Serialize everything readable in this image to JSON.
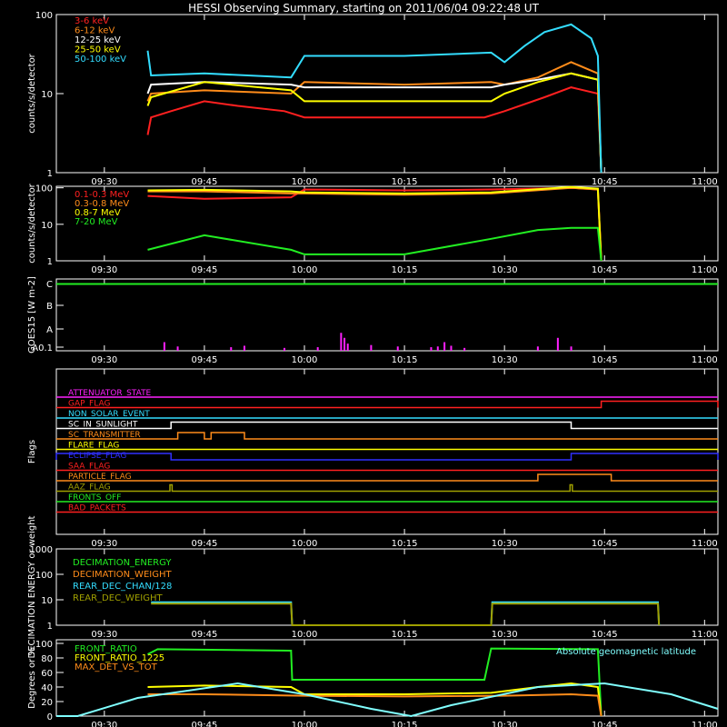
{
  "title": "HESSI Observing Summary, starting on 2011/06/04 09:22:48 UT",
  "time_ticks": [
    "09:30",
    "09:45",
    "10:00",
    "10:15",
    "10:30",
    "10:45",
    "11:00"
  ],
  "colors": {
    "red": "#ff2020",
    "orange": "#ff8c1a",
    "yellow": "#ffff00",
    "green": "#22ee22",
    "cyan": "#33ddff",
    "magenta": "#ff20ff",
    "blue": "#3030ff",
    "olive": "#a0a000",
    "white": "#ffffff",
    "sky": "#80ffff"
  },
  "chart_data": [
    {
      "type": "line",
      "ylabel": "counts/s/detector",
      "yscale": "log",
      "ylim": [
        1,
        100
      ],
      "ytick_labels": [
        "1",
        "10",
        "100"
      ],
      "xlim": [
        "09:22:48",
        "11:02"
      ],
      "legend": "top-left",
      "series": [
        {
          "name": "3-6 keV",
          "color": "red",
          "points": [
            [
              "09:36:30",
              3
            ],
            [
              "09:37",
              5
            ],
            [
              "09:40",
              6
            ],
            [
              "09:45",
              8
            ],
            [
              "09:50",
              7
            ],
            [
              "09:57",
              6
            ],
            [
              "10:00",
              5
            ],
            [
              "10:15",
              5
            ],
            [
              "10:27",
              5
            ],
            [
              "10:30",
              6
            ],
            [
              "10:36",
              9
            ],
            [
              "10:40",
              12
            ],
            [
              "10:44",
              10
            ],
            [
              "10:44:30",
              1
            ]
          ]
        },
        {
          "name": "6-12 keV",
          "color": "orange",
          "points": [
            [
              "09:36:30",
              8
            ],
            [
              "09:37",
              10
            ],
            [
              "09:45",
              11
            ],
            [
              "09:58",
              10
            ],
            [
              "10:00",
              14
            ],
            [
              "10:15",
              13
            ],
            [
              "10:28",
              14
            ],
            [
              "10:30",
              13
            ],
            [
              "10:35",
              16
            ],
            [
              "10:40",
              25
            ],
            [
              "10:44",
              18
            ],
            [
              "10:44:30",
              1
            ]
          ]
        },
        {
          "name": "12-25 keV",
          "color": "white",
          "points": [
            [
              "09:36:30",
              10
            ],
            [
              "09:37",
              13
            ],
            [
              "09:45",
              14
            ],
            [
              "09:58",
              13
            ],
            [
              "10:00",
              12
            ],
            [
              "10:15",
              12
            ],
            [
              "10:28",
              12
            ],
            [
              "10:30",
              13
            ],
            [
              "10:35",
              15
            ],
            [
              "10:40",
              18
            ],
            [
              "10:44",
              15
            ],
            [
              "10:44:30",
              1
            ]
          ]
        },
        {
          "name": "25-50 keV",
          "color": "yellow",
          "points": [
            [
              "09:36:30",
              7
            ],
            [
              "09:37",
              9
            ],
            [
              "09:45",
              14
            ],
            [
              "09:58",
              11
            ],
            [
              "10:00",
              8
            ],
            [
              "10:15",
              8
            ],
            [
              "10:28",
              8
            ],
            [
              "10:30",
              10
            ],
            [
              "10:35",
              14
            ],
            [
              "10:40",
              18
            ],
            [
              "10:44",
              15
            ],
            [
              "10:44:30",
              1
            ]
          ]
        },
        {
          "name": "50-100 keV",
          "color": "cyan",
          "points": [
            [
              "09:36:30",
              35
            ],
            [
              "09:37",
              17
            ],
            [
              "09:45",
              18
            ],
            [
              "09:58",
              16
            ],
            [
              "10:00",
              30
            ],
            [
              "10:15",
              30
            ],
            [
              "10:28",
              33
            ],
            [
              "10:30",
              25
            ],
            [
              "10:33",
              40
            ],
            [
              "10:36",
              60
            ],
            [
              "10:40",
              75
            ],
            [
              "10:43",
              50
            ],
            [
              "10:44",
              30
            ],
            [
              "10:44:30",
              1
            ]
          ]
        }
      ]
    },
    {
      "type": "line",
      "ylabel": "counts/s/detector",
      "yscale": "log",
      "ylim": [
        1,
        110
      ],
      "ytick_labels": [
        "1",
        "10",
        "100"
      ],
      "legend": "top-left",
      "series": [
        {
          "name": "0.1-0.3 MeV",
          "color": "red",
          "points": [
            [
              "09:36:30",
              60
            ],
            [
              "09:45",
              50
            ],
            [
              "09:58",
              55
            ],
            [
              "10:00",
              90
            ],
            [
              "10:15",
              85
            ],
            [
              "10:28",
              90
            ],
            [
              "10:40",
              100
            ],
            [
              "10:44",
              90
            ],
            [
              "10:44:30",
              1
            ]
          ]
        },
        {
          "name": "0.3-0.8 MeV",
          "color": "orange",
          "points": [
            [
              "09:36:30",
              80
            ],
            [
              "09:45",
              80
            ],
            [
              "09:58",
              70
            ],
            [
              "10:00",
              70
            ],
            [
              "10:15",
              65
            ],
            [
              "10:28",
              70
            ],
            [
              "10:40",
              100
            ],
            [
              "10:44",
              90
            ],
            [
              "10:44:30",
              1
            ]
          ]
        },
        {
          "name": "0.8-7 MeV",
          "color": "yellow",
          "points": [
            [
              "09:36:30",
              85
            ],
            [
              "09:45",
              88
            ],
            [
              "09:58",
              80
            ],
            [
              "10:00",
              75
            ],
            [
              "10:15",
              70
            ],
            [
              "10:28",
              75
            ],
            [
              "10:40",
              105
            ],
            [
              "10:44",
              95
            ],
            [
              "10:44:30",
              1
            ]
          ]
        },
        {
          "name": "7-20 MeV",
          "color": "green",
          "points": [
            [
              "09:36:30",
              2
            ],
            [
              "09:45",
              5
            ],
            [
              "09:58",
              2
            ],
            [
              "10:00",
              1.5
            ],
            [
              "10:15",
              1.5
            ],
            [
              "10:28",
              4
            ],
            [
              "10:35",
              7
            ],
            [
              "10:40",
              8
            ],
            [
              "10:44",
              8
            ],
            [
              "10:44:30",
              1
            ]
          ]
        }
      ]
    },
    {
      "type": "line",
      "ylabel": "GOES15 [W m-2]",
      "ytick_labels": [
        "A0.1",
        "A",
        "B",
        "C"
      ],
      "series": [
        {
          "name": "",
          "color": "green",
          "points": [
            [
              "09:22:48",
              0.93
            ],
            [
              "11:02",
              0.93
            ]
          ]
        }
      ],
      "spikes": {
        "color": "magenta",
        "times": [
          "09:39",
          "09:41",
          "09:49",
          "09:51",
          "09:57",
          "10:02",
          "10:05:30",
          "10:06",
          "10:06:30",
          "10:10",
          "10:14",
          "10:19",
          "10:20",
          "10:21",
          "10:22",
          "10:24",
          "10:35",
          "10:38",
          "10:40"
        ],
        "heights": [
          0.12,
          0.06,
          0.05,
          0.07,
          0.04,
          0.05,
          0.25,
          0.18,
          0.1,
          0.08,
          0.06,
          0.05,
          0.06,
          0.12,
          0.07,
          0.04,
          0.06,
          0.18,
          0.06
        ]
      }
    },
    {
      "type": "line",
      "ylabel": "Flags",
      "flags": [
        {
          "name": "ATTENUATOR_STATE",
          "color": "magenta",
          "on": []
        },
        {
          "name": "GAP_FLAG",
          "color": "red",
          "on": [
            [
              "10:44:30",
              "11:02"
            ]
          ]
        },
        {
          "name": "NON_SOLAR_EVENT",
          "color": "cyan",
          "on": []
        },
        {
          "name": "SC_IN_SUNLIGHT",
          "color": "white",
          "on": [
            [
              "09:40",
              "10:40"
            ]
          ]
        },
        {
          "name": "SC_TRANSMITTER",
          "color": "orange",
          "on": [
            [
              "09:41",
              "09:45"
            ],
            [
              "09:46",
              "09:51"
            ]
          ]
        },
        {
          "name": "FLARE_FLAG",
          "color": "yellow",
          "on": []
        },
        {
          "name": "ECLIPSE_FLAG",
          "color": "blue",
          "on": [
            [
              "09:22:48",
              "09:40"
            ],
            [
              "10:40",
              "11:02"
            ]
          ]
        },
        {
          "name": "SAA_FLAG",
          "color": "red",
          "on": []
        },
        {
          "name": "PARTICLE_FLAG",
          "color": "orange",
          "on": [
            [
              "10:35",
              "10:46"
            ]
          ]
        },
        {
          "name": "AAZ_FLAG",
          "color": "olive",
          "on": [
            [
              "09:39:50",
              "09:40:10"
            ],
            [
              "10:39:50",
              "10:40:10"
            ]
          ]
        },
        {
          "name": "FRONTS_OFF",
          "color": "green",
          "on": []
        },
        {
          "name": "BAD_PACKETS",
          "color": "red",
          "on": []
        }
      ]
    },
    {
      "type": "line",
      "ylabel": "DECIMATION ENERGY or weight",
      "yscale": "log",
      "ylim": [
        1,
        1000
      ],
      "ytick_labels": [
        "1",
        "10",
        "100",
        "1000"
      ],
      "legend": "top-left",
      "series": [
        {
          "name": "DECIMATION_ENERGY",
          "color": "green",
          "points": []
        },
        {
          "name": "DECIMATION_WEIGHT",
          "color": "orange",
          "points": []
        },
        {
          "name": "REAR_DEC_CHAN/128",
          "color": "cyan",
          "points": [
            [
              "09:37",
              8
            ],
            [
              "09:58",
              8
            ],
            [
              "09:58:10",
              1
            ],
            [
              "10:28",
              1
            ],
            [
              "10:28:10",
              8
            ],
            [
              "10:53",
              8
            ],
            [
              "10:53:10",
              1
            ]
          ]
        },
        {
          "name": "REAR_DEC_WEIGHT",
          "color": "olive",
          "points": [
            [
              "09:37",
              7
            ],
            [
              "09:58",
              7
            ],
            [
              "09:58:10",
              1
            ],
            [
              "10:28",
              1
            ],
            [
              "10:28:10",
              7
            ],
            [
              "10:53",
              7
            ],
            [
              "10:53:10",
              1
            ]
          ]
        }
      ]
    },
    {
      "type": "line",
      "ylabel": "Degrees or %",
      "ylim": [
        0,
        105
      ],
      "ytick_labels": [
        "0",
        "20",
        "40",
        "60",
        "80",
        "100"
      ],
      "legend": "top-left",
      "annotation": "Absolute geomagnetic latitude",
      "series": [
        {
          "name": "FRONT_RATIO",
          "color": "green",
          "points": [
            [
              "09:36:30",
              85
            ],
            [
              "09:38",
              92
            ],
            [
              "09:58",
              90
            ],
            [
              "09:58:10",
              50
            ],
            [
              "10:27",
              50
            ],
            [
              "10:28",
              93
            ],
            [
              "10:44",
              92
            ],
            [
              "10:44:30",
              0
            ]
          ]
        },
        {
          "name": "FRONT_RATIO_1225",
          "color": "yellow",
          "points": [
            [
              "09:36:30",
              40
            ],
            [
              "09:45",
              42
            ],
            [
              "09:58",
              40
            ],
            [
              "10:00",
              30
            ],
            [
              "10:15",
              30
            ],
            [
              "10:28",
              32
            ],
            [
              "10:35",
              40
            ],
            [
              "10:40",
              45
            ],
            [
              "10:44",
              40
            ],
            [
              "10:44:30",
              0
            ]
          ]
        },
        {
          "name": "MAX_DET_VS_TOT",
          "color": "orange",
          "points": [
            [
              "09:36:30",
              30
            ],
            [
              "09:45",
              30
            ],
            [
              "10:00",
              28
            ],
            [
              "10:15",
              27
            ],
            [
              "10:30",
              28
            ],
            [
              "10:40",
              30
            ],
            [
              "10:44",
              28
            ],
            [
              "10:44:30",
              0
            ]
          ]
        },
        {
          "name": "",
          "color": "sky",
          "points": [
            [
              "09:22:48",
              0
            ],
            [
              "09:26",
              0
            ],
            [
              "09:35",
              25
            ],
            [
              "09:50",
              45
            ],
            [
              "10:00",
              30
            ],
            [
              "10:10",
              10
            ],
            [
              "10:16",
              0
            ],
            [
              "10:22",
              15
            ],
            [
              "10:35",
              40
            ],
            [
              "10:45",
              45
            ],
            [
              "10:55",
              30
            ],
            [
              "11:02",
              10
            ]
          ]
        }
      ]
    }
  ]
}
